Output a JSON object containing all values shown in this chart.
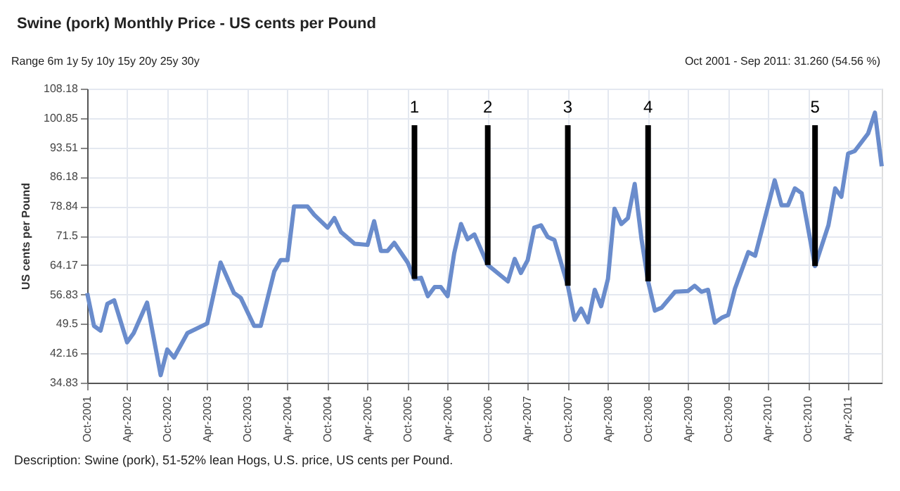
{
  "chart_data": {
    "type": "line",
    "title": "Swine (pork) Monthly Price - US cents per Pound",
    "ylabel": "US cents per Pound",
    "x": [
      "2001-10",
      "2001-11",
      "2001-12",
      "2002-01",
      "2002-02",
      "2002-04",
      "2002-05",
      "2002-07",
      "2002-09",
      "2002-10",
      "2002-11",
      "2003-01",
      "2003-04",
      "2003-06",
      "2003-08",
      "2003-09",
      "2003-11",
      "2003-12",
      "2004-02",
      "2004-03",
      "2004-04",
      "2004-05",
      "2004-07",
      "2004-08",
      "2004-10",
      "2004-11",
      "2004-12",
      "2005-02",
      "2005-04",
      "2005-05",
      "2005-06",
      "2005-07",
      "2005-08",
      "2005-10",
      "2005-11",
      "2005-12",
      "2006-01",
      "2006-02",
      "2006-03",
      "2006-04",
      "2006-05",
      "2006-06",
      "2006-07",
      "2006-08",
      "2006-10",
      "2007-01",
      "2007-02",
      "2007-03",
      "2007-04",
      "2007-05",
      "2007-06",
      "2007-07",
      "2007-08",
      "2007-10",
      "2007-11",
      "2007-12",
      "2008-01",
      "2008-02",
      "2008-03",
      "2008-04",
      "2008-05",
      "2008-06",
      "2008-07",
      "2008-08",
      "2008-09",
      "2008-10",
      "2008-11",
      "2008-12",
      "2009-02",
      "2009-04",
      "2009-05",
      "2009-06",
      "2009-07",
      "2009-08",
      "2009-09",
      "2009-10",
      "2009-11",
      "2010-01",
      "2010-02",
      "2010-03",
      "2010-05",
      "2010-06",
      "2010-07",
      "2010-08",
      "2010-09",
      "2010-11",
      "2011-01",
      "2011-02",
      "2011-03",
      "2011-04",
      "2011-05",
      "2011-07",
      "2011-08",
      "2011-09"
    ],
    "series": [
      {
        "color": "#6a8ccc",
        "values": [
          57.2,
          49.0,
          47.8,
          54.5,
          55.4,
          44.9,
          47.2,
          54.8,
          36.7,
          43.1,
          41.1,
          47.2,
          49.6,
          64.8,
          57.2,
          56.0,
          49.0,
          49.0,
          62.6,
          65.4,
          65.4,
          78.8,
          78.8,
          76.7,
          73.5,
          75.9,
          72.4,
          69.5,
          69.2,
          75.1,
          67.7,
          67.7,
          69.7,
          64.8,
          60.7,
          61.0,
          56.4,
          58.7,
          58.7,
          56.4,
          67.1,
          74.4,
          70.6,
          71.8,
          64.2,
          60.1,
          65.7,
          62.2,
          65.4,
          73.5,
          74.1,
          71.2,
          70.4,
          59.0,
          50.5,
          53.3,
          49.9,
          58.0,
          53.9,
          60.7,
          78.2,
          74.4,
          75.9,
          84.4,
          70.6,
          60.1,
          52.8,
          53.5,
          57.5,
          57.7,
          59.0,
          57.5,
          58.0,
          49.8,
          51.0,
          51.7,
          58.3,
          67.4,
          66.5,
          72.4,
          85.3,
          79.1,
          79.1,
          83.3,
          82.1,
          63.9,
          74.1,
          83.3,
          81.2,
          92.0,
          92.6,
          97.0,
          102.2,
          88.8
        ]
      }
    ],
    "xlim": [
      "2001-10",
      "2011-09"
    ],
    "xticks": [
      {
        "value": "2001-10",
        "label": "Oct-2001"
      },
      {
        "value": "2002-04",
        "label": "Apr-2002"
      },
      {
        "value": "2002-10",
        "label": "Oct-2002"
      },
      {
        "value": "2003-04",
        "label": "Apr-2003"
      },
      {
        "value": "2003-10",
        "label": "Oct-2003"
      },
      {
        "value": "2004-04",
        "label": "Apr-2004"
      },
      {
        "value": "2004-10",
        "label": "Oct-2004"
      },
      {
        "value": "2005-04",
        "label": "Apr-2005"
      },
      {
        "value": "2005-10",
        "label": "Oct-2005"
      },
      {
        "value": "2006-04",
        "label": "Apr-2006"
      },
      {
        "value": "2006-10",
        "label": "Oct-2006"
      },
      {
        "value": "2007-04",
        "label": "Apr-2007"
      },
      {
        "value": "2007-10",
        "label": "Oct-2007"
      },
      {
        "value": "2008-04",
        "label": "Apr-2008"
      },
      {
        "value": "2008-10",
        "label": "Oct-2008"
      },
      {
        "value": "2009-04",
        "label": "Apr-2009"
      },
      {
        "value": "2009-10",
        "label": "Oct-2009"
      },
      {
        "value": "2010-04",
        "label": "Apr-2010"
      },
      {
        "value": "2010-10",
        "label": "Oct-2010"
      },
      {
        "value": "2011-04",
        "label": "Apr-2011"
      }
    ],
    "ylim": [
      34.83,
      108.18
    ],
    "yticks": [
      34.83,
      42.16,
      49.5,
      56.83,
      64.17,
      71.5,
      78.84,
      86.18,
      93.51,
      100.85,
      108.18
    ],
    "grid": true,
    "annotations": [
      "Range 6m 1y 5y 10y 15y 20y 25y 30y",
      "Oct 2001 - Sep 2011: 31.260 (54.56 %)",
      "Description: Swine (pork), 51-52% lean Hogs, U.S. price, US cents per Pound.",
      {
        "text": "1",
        "x": "2005-11",
        "y": 60.7
      },
      {
        "text": "2",
        "x": "2006-10",
        "y": 64.2
      },
      {
        "text": "3",
        "x": "2007-10",
        "y": 59.0
      },
      {
        "text": "4",
        "x": "2008-10",
        "y": 60.1
      },
      {
        "text": "5",
        "x": "2010-11",
        "y": 63.9
      }
    ]
  }
}
